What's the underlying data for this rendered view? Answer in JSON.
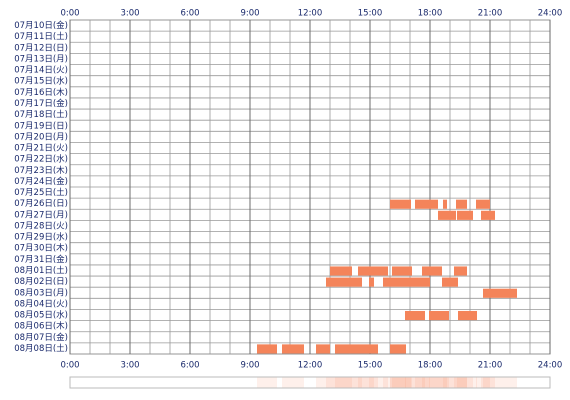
{
  "chart_data": {
    "type": "timeline",
    "categories": [
      "07月10日(金)",
      "07月11日(土)",
      "07月12日(日)",
      "07月13日(月)",
      "07月14日(火)",
      "07月15日(水)",
      "07月16日(木)",
      "07月17日(金)",
      "07月18日(土)",
      "07月19日(日)",
      "07月20日(月)",
      "07月21日(火)",
      "07月22日(水)",
      "07月23日(木)",
      "07月24日(金)",
      "07月25日(土)",
      "07月26日(日)",
      "07月27日(月)",
      "07月28日(火)",
      "07月29日(水)",
      "07月30日(木)",
      "07月31日(金)",
      "08月01日(土)",
      "08月02日(日)",
      "08月03日(月)",
      "08月04日(火)",
      "08月05日(水)",
      "08月06日(木)",
      "08月07日(金)",
      "08月08日(土)"
    ],
    "values": [
      [],
      [],
      [],
      [],
      [],
      [],
      [],
      [],
      [],
      [],
      [],
      [],
      [],
      [],
      [],
      [],
      [
        [
          16.0,
          17.05
        ],
        [
          17.25,
          18.4
        ],
        [
          18.65,
          18.85
        ],
        [
          19.3,
          19.85
        ],
        [
          20.3,
          21.0
        ]
      ],
      [
        [
          18.4,
          19.3
        ],
        [
          19.35,
          20.15
        ],
        [
          20.55,
          21.25
        ]
      ],
      [],
      [],
      [],
      [],
      [
        [
          13.0,
          14.1
        ],
        [
          14.4,
          15.9
        ],
        [
          16.1,
          17.1
        ],
        [
          17.6,
          18.6
        ],
        [
          19.2,
          19.85
        ]
      ],
      [
        [
          12.8,
          14.6
        ],
        [
          14.95,
          15.2
        ],
        [
          15.65,
          18.0
        ],
        [
          18.6,
          19.4
        ]
      ],
      [
        [
          20.65,
          22.35
        ]
      ],
      [],
      [
        [
          16.75,
          17.75
        ],
        [
          17.95,
          18.95
        ],
        [
          19.4,
          20.35
        ]
      ],
      [],
      [],
      [
        [
          9.35,
          10.35
        ],
        [
          10.6,
          11.7
        ],
        [
          12.3,
          13.0
        ],
        [
          13.25,
          15.4
        ],
        [
          16.0,
          16.8
        ]
      ]
    ],
    "color": "#f4845a",
    "xlim": [
      0,
      24
    ],
    "xticks": [
      {
        "value": 0,
        "label": "0:00"
      },
      {
        "value": 3,
        "label": "3:00"
      },
      {
        "value": 6,
        "label": "6:00"
      },
      {
        "value": 9,
        "label": "9:00"
      },
      {
        "value": 12,
        "label": "12:00"
      },
      {
        "value": 15,
        "label": "15:00"
      },
      {
        "value": 18,
        "label": "18:00"
      },
      {
        "value": 21,
        "label": "21:00"
      },
      {
        "value": 24,
        "label": "24:00"
      }
    ],
    "grid": true
  }
}
